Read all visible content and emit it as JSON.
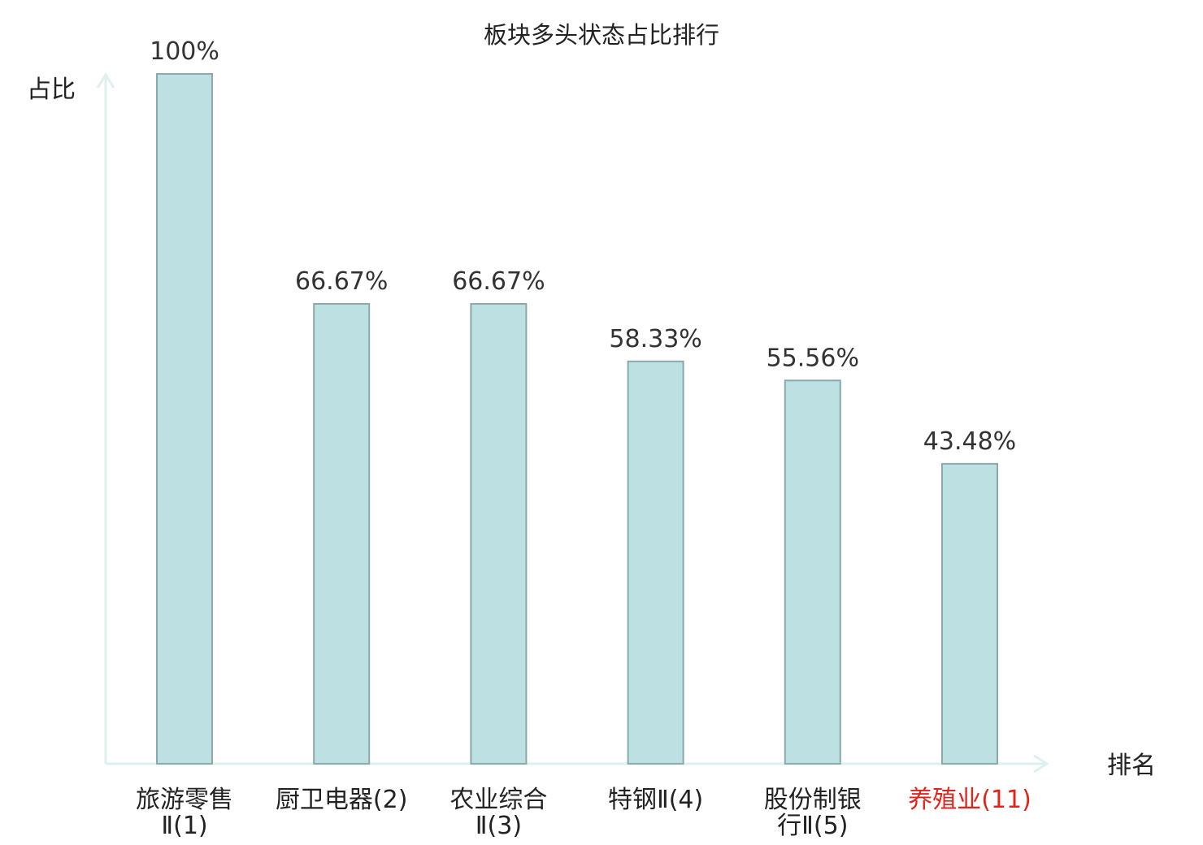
{
  "chart_data": {
    "type": "bar",
    "title": "板块多头状态占比排行",
    "ylabel": "占比",
    "xlabel": "排名",
    "ylim": [
      0,
      100
    ],
    "grid": false,
    "categories": [
      {
        "lines": [
          "旅游零售",
          "Ⅱ(1)"
        ],
        "highlight": false
      },
      {
        "lines": [
          "厨卫电器(2)"
        ],
        "highlight": false
      },
      {
        "lines": [
          "农业综合",
          "Ⅱ(3)"
        ],
        "highlight": false
      },
      {
        "lines": [
          "特钢Ⅱ(4)"
        ],
        "highlight": false
      },
      {
        "lines": [
          "股份制银",
          "行Ⅱ(5)"
        ],
        "highlight": false
      },
      {
        "lines": [
          "养殖业(11)"
        ],
        "highlight": true
      }
    ],
    "values": [
      100,
      66.67,
      66.67,
      58.33,
      55.56,
      43.48
    ],
    "value_labels": [
      "100%",
      "66.67%",
      "66.67%",
      "58.33%",
      "55.56%",
      "43.48%"
    ],
    "colors": {
      "bar_fill": "#bde1e3",
      "bar_stroke": "#8aa9ab",
      "axis": "#dcf0ee",
      "label_text": "#333333",
      "category_text": "#222222",
      "highlight_text": "#e0241b"
    }
  }
}
